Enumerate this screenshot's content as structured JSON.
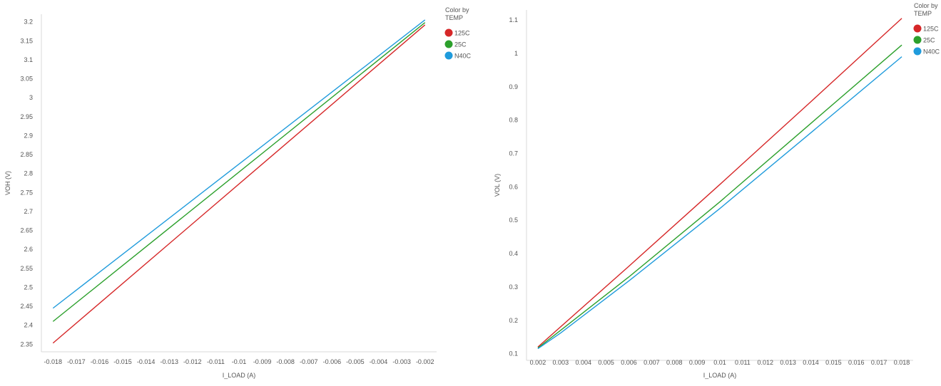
{
  "chart_data": [
    {
      "type": "line",
      "title": "",
      "xlabel": "I_LOAD (A)",
      "ylabel": "VOH (V)",
      "xlim": [
        -0.0185,
        -0.0015
      ],
      "ylim": [
        2.33,
        3.22
      ],
      "x_ticks": [
        -0.018,
        -0.017,
        -0.016,
        -0.015,
        -0.014,
        -0.013,
        -0.012,
        -0.011,
        -0.01,
        -0.009,
        -0.008,
        -0.007,
        -0.006,
        -0.005,
        -0.004,
        -0.003,
        -0.002
      ],
      "x_tick_labels": [
        "-0.018",
        "-0.017",
        "-0.016",
        "-0.015",
        "-0.014",
        "-0.013",
        "-0.012",
        "-0.011",
        "-0.01",
        "-0.009",
        "-0.008",
        "-0.007",
        "-0.006",
        "-0.005",
        "-0.004",
        "-0.003",
        "-0.002"
      ],
      "y_ticks": [
        2.35,
        2.4,
        2.45,
        2.5,
        2.55,
        2.6,
        2.65,
        2.7,
        2.75,
        2.8,
        2.85,
        2.9,
        2.95,
        3,
        3.05,
        3.1,
        3.15,
        3.2
      ],
      "y_tick_labels": [
        "2.35",
        "2.4",
        "2.45",
        "2.5",
        "2.55",
        "2.6",
        "2.65",
        "2.7",
        "2.75",
        "2.8",
        "2.85",
        "2.9",
        "2.95",
        "3",
        "3.05",
        "3.1",
        "3.15",
        "3.2"
      ],
      "grid": false,
      "legend": {
        "title_line1": "Color by",
        "title_line2": "TEMP",
        "placement": "top-right"
      },
      "series": [
        {
          "name": "125C",
          "color": "#d62728",
          "x": [
            -0.018,
            -0.002
          ],
          "y": [
            2.353,
            3.192
          ]
        },
        {
          "name": "25C",
          "color": "#2ca02c",
          "x": [
            -0.018,
            -0.002
          ],
          "y": [
            2.41,
            3.198
          ]
        },
        {
          "name": "N40C",
          "color": "#1f9bdc",
          "x": [
            -0.018,
            -0.002
          ],
          "y": [
            2.445,
            3.205
          ]
        }
      ]
    },
    {
      "type": "line",
      "title": "",
      "xlabel": "I_LOAD (A)",
      "ylabel": "VOL (V)",
      "xlim": [
        0.0015,
        0.0185
      ],
      "ylim": [
        0.08,
        1.13
      ],
      "x_ticks": [
        0.002,
        0.003,
        0.004,
        0.005,
        0.006,
        0.007,
        0.008,
        0.009,
        0.01,
        0.011,
        0.012,
        0.013,
        0.014,
        0.015,
        0.016,
        0.017,
        0.018
      ],
      "x_tick_labels": [
        "0.002",
        "0.003",
        "0.004",
        "0.005",
        "0.006",
        "0.007",
        "0.008",
        "0.009",
        "0.01",
        "0.011",
        "0.012",
        "0.013",
        "0.014",
        "0.015",
        "0.016",
        "0.017",
        "0.018"
      ],
      "y_ticks": [
        0.1,
        0.2,
        0.3,
        0.4,
        0.5,
        0.6,
        0.7,
        0.8,
        0.9,
        1,
        1.1
      ],
      "y_tick_labels": [
        "0.1",
        "0.2",
        "0.3",
        "0.4",
        "0.5",
        "0.6",
        "0.7",
        "0.8",
        "0.9",
        "1",
        "1.1"
      ],
      "grid": false,
      "legend": {
        "title_line1": "Color by",
        "title_line2": "TEMP",
        "placement": "top-right"
      },
      "series": [
        {
          "name": "125C",
          "color": "#d62728",
          "x": [
            0.002,
            0.006,
            0.01,
            0.014,
            0.018
          ],
          "y": [
            0.12,
            0.362,
            0.607,
            0.855,
            1.105
          ]
        },
        {
          "name": "25C",
          "color": "#2ca02c",
          "x": [
            0.002,
            0.003,
            0.006,
            0.01,
            0.014,
            0.018
          ],
          "y": [
            0.117,
            0.17,
            0.33,
            0.555,
            0.79,
            1.025
          ]
        },
        {
          "name": "N40C",
          "color": "#1f9bdc",
          "x": [
            0.002,
            0.003,
            0.006,
            0.01,
            0.014,
            0.018
          ],
          "y": [
            0.115,
            0.162,
            0.318,
            0.535,
            0.762,
            0.99
          ]
        }
      ]
    }
  ]
}
